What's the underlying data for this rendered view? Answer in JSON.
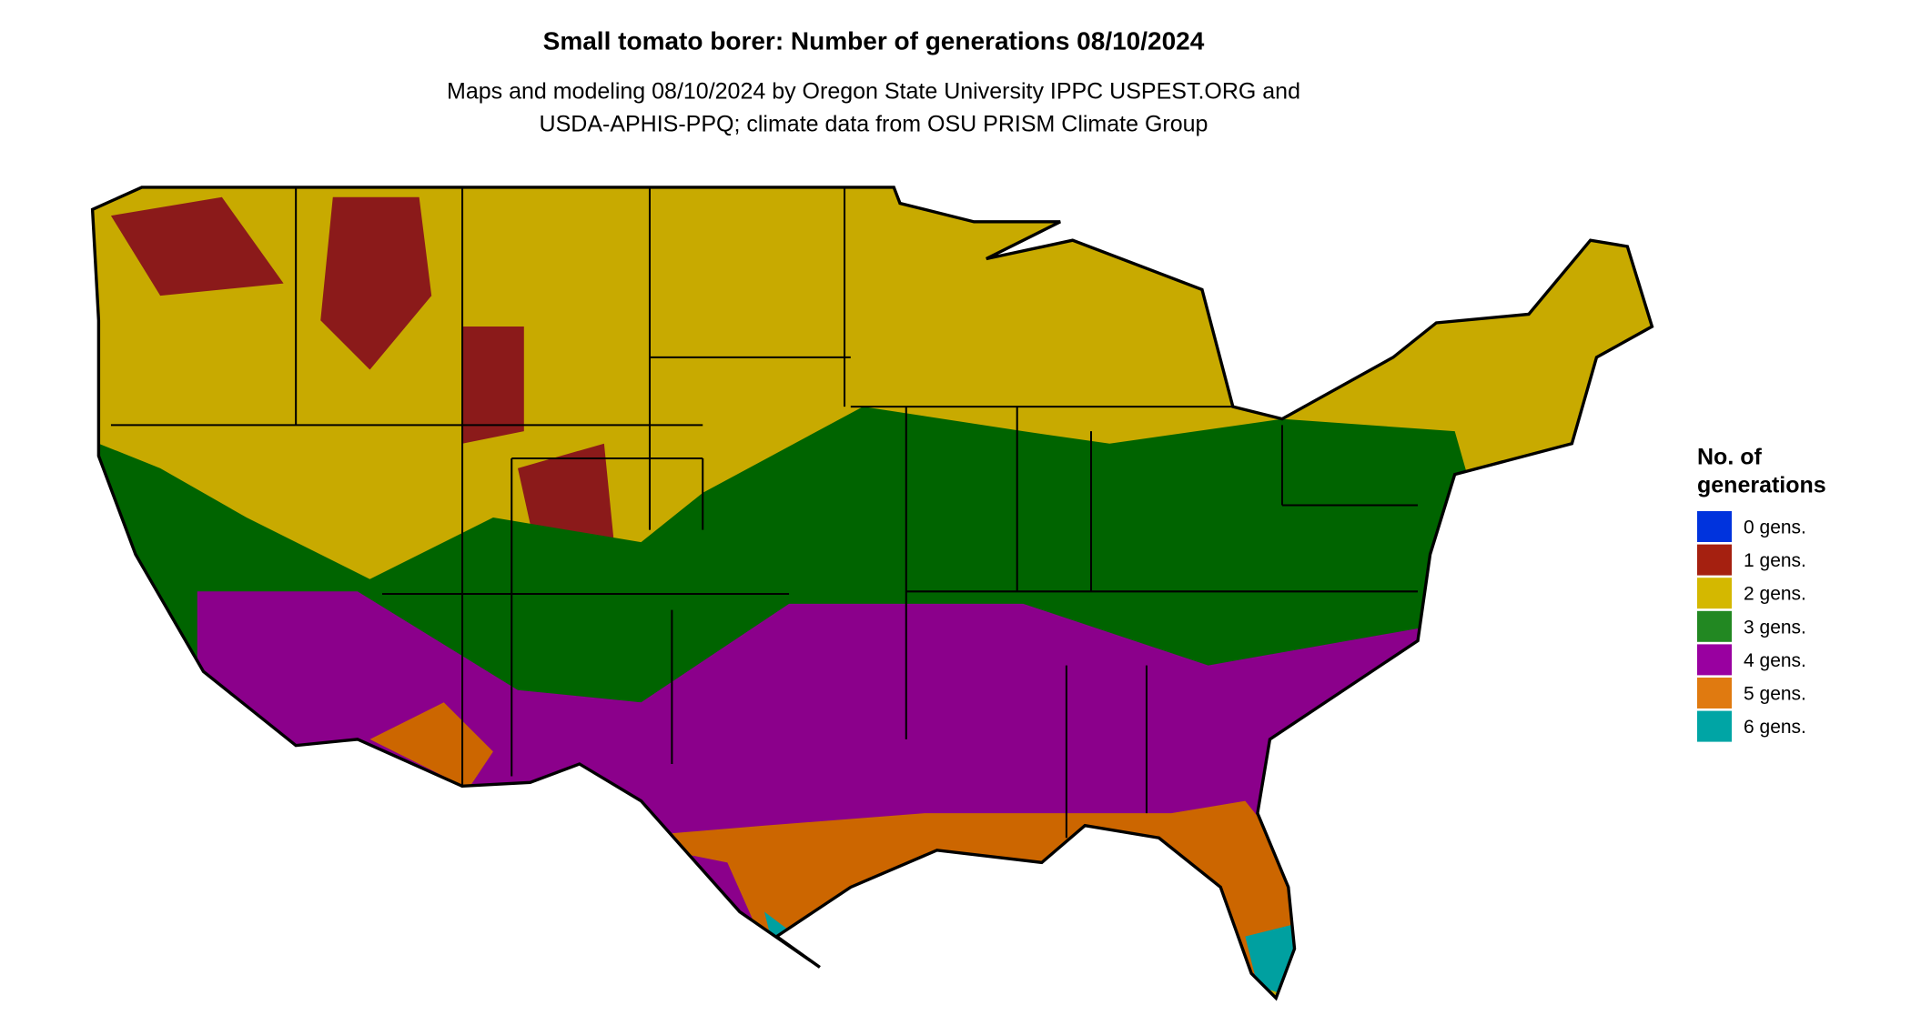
{
  "title": "Small tomato borer: Number of generations 08/10/2024",
  "subtitle": [
    "Maps and modeling 08/10/2024 by Oregon State University IPPC USPEST.ORG and",
    "USDA-APHIS-PPQ; climate data from OSU PRISM Climate Group"
  ],
  "legend": {
    "title": [
      "No. of",
      "generations"
    ],
    "items": [
      {
        "label": "0 gens.",
        "color": "#0033dd"
      },
      {
        "label": "1 gens.",
        "color": "#a52010"
      },
      {
        "label": "2 gens.",
        "color": "#d4b800"
      },
      {
        "label": "3 gens.",
        "color": "#228822"
      },
      {
        "label": "4 gens.",
        "color": "#9900a0"
      },
      {
        "label": "5 gens.",
        "color": "#e07a10"
      },
      {
        "label": "6 gens.",
        "color": "#00a5a5"
      }
    ]
  }
}
